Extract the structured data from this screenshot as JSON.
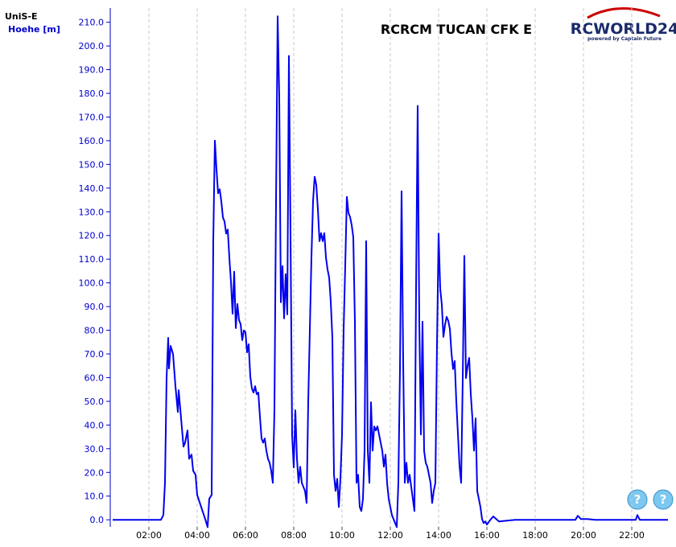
{
  "chart_data": {
    "type": "line",
    "title": "RCRCM TUCAN CFK E",
    "device": "UniS-E",
    "y_label": "Hoehe [m]",
    "logo": {
      "name": "RCWORLD24",
      "tagline": "powered by Captain Future"
    },
    "xlim": [
      24,
      1430
    ],
    "ylim": [
      -3,
      216
    ],
    "xticks": [
      {
        "value": 120,
        "label": "02:00"
      },
      {
        "value": 240,
        "label": "04:00"
      },
      {
        "value": 360,
        "label": "06:00"
      },
      {
        "value": 480,
        "label": "08:00"
      },
      {
        "value": 600,
        "label": "10:00"
      },
      {
        "value": 720,
        "label": "12:00"
      },
      {
        "value": 840,
        "label": "14:00"
      },
      {
        "value": 960,
        "label": "16:00"
      },
      {
        "value": 1080,
        "label": "18:00"
      },
      {
        "value": 1200,
        "label": "20:00"
      },
      {
        "value": 1320,
        "label": "22:00"
      }
    ],
    "yticks": [
      {
        "value": 0,
        "label": "0.0"
      },
      {
        "value": 10,
        "label": "10.0"
      },
      {
        "value": 20,
        "label": "20.0"
      },
      {
        "value": 30,
        "label": "30.0"
      },
      {
        "value": 40,
        "label": "40.0"
      },
      {
        "value": 50,
        "label": "50.0"
      },
      {
        "value": 60,
        "label": "60.0"
      },
      {
        "value": 70,
        "label": "70.0"
      },
      {
        "value": 80,
        "label": "80.0"
      },
      {
        "value": 90,
        "label": "90.0"
      },
      {
        "value": 100,
        "label": "100.0"
      },
      {
        "value": 110,
        "label": "110.0"
      },
      {
        "value": 120,
        "label": "120.0"
      },
      {
        "value": 130,
        "label": "130.0"
      },
      {
        "value": 140,
        "label": "140.0"
      },
      {
        "value": 150,
        "label": "150.0"
      },
      {
        "value": 160,
        "label": "160.0"
      },
      {
        "value": 170,
        "label": "170.0"
      },
      {
        "value": 180,
        "label": "180.0"
      },
      {
        "value": 190,
        "label": "190.0"
      },
      {
        "value": 200,
        "label": "200.0"
      },
      {
        "value": 210,
        "label": "210.0"
      }
    ],
    "x_grid": true,
    "color": "#0000ee",
    "x": [
      30,
      150,
      156,
      160,
      164,
      168,
      170,
      174,
      180,
      186,
      192,
      194,
      200,
      206,
      210,
      216,
      220,
      226,
      230,
      236,
      240,
      250,
      260,
      266,
      270,
      276,
      280,
      284,
      288,
      292,
      296,
      300,
      304,
      308,
      312,
      316,
      320,
      324,
      328,
      332,
      336,
      340,
      344,
      348,
      352,
      356,
      360,
      364,
      368,
      372,
      376,
      380,
      384,
      388,
      392,
      396,
      400,
      404,
      408,
      412,
      416,
      420,
      424,
      428,
      432,
      436,
      440,
      444,
      448,
      452,
      456,
      460,
      464,
      468,
      472,
      476,
      480,
      484,
      488,
      492,
      496,
      500,
      504,
      508,
      512,
      516,
      520,
      524,
      528,
      532,
      536,
      540,
      544,
      548,
      552,
      556,
      560,
      564,
      568,
      572,
      576,
      580,
      584,
      588,
      592,
      596,
      600,
      604,
      608,
      612,
      616,
      620,
      624,
      628,
      632,
      636,
      640,
      644,
      648,
      652,
      656,
      660,
      664,
      668,
      672,
      676,
      680,
      684,
      688,
      692,
      696,
      700,
      704,
      708,
      712,
      716,
      720,
      724,
      728,
      732,
      736,
      740,
      744,
      748,
      752,
      756,
      760,
      764,
      768,
      772,
      776,
      780,
      784,
      788,
      792,
      796,
      800,
      804,
      808,
      812,
      816,
      820,
      824,
      828,
      832,
      836,
      840,
      844,
      848,
      852,
      856,
      860,
      864,
      868,
      872,
      876,
      880,
      884,
      888,
      892,
      896,
      900,
      904,
      908,
      912,
      916,
      920,
      924,
      928,
      932,
      936,
      940,
      944,
      948,
      952,
      956,
      960,
      970,
      976,
      990,
      1030,
      1180,
      1186,
      1194,
      1210,
      1230,
      1330,
      1334,
      1340,
      1410
    ],
    "values": [
      0,
      0,
      2,
      15.6,
      59.8,
      76.8,
      63.9,
      73.4,
      70,
      56.4,
      45.5,
      54.7,
      42.8,
      30.9,
      32.6,
      37.7,
      25.8,
      27.5,
      20.7,
      19,
      10.5,
      5.4,
      0.3,
      -3.1,
      8.8,
      10.5,
      117.5,
      160,
      148,
      137.8,
      139.5,
      134.4,
      127.6,
      125.9,
      120.8,
      122.5,
      110.6,
      100.4,
      87,
      104.7,
      80.9,
      91.1,
      84.3,
      82.6,
      75.8,
      79.9,
      79.2,
      70.7,
      74.1,
      60.5,
      55.4,
      53.7,
      56.4,
      53,
      53.7,
      43.5,
      34.3,
      32.6,
      34.3,
      29.2,
      25.8,
      24.1,
      20.7,
      15.6,
      46.2,
      134.4,
      212.5,
      178.5,
      91.8,
      107.1,
      85,
      103.7,
      86.7,
      195.8,
      120.8,
      35.7,
      22.1,
      46.2,
      25.8,
      15.6,
      22.4,
      15.6,
      13.9,
      12.2,
      7.1,
      49.6,
      80.2,
      110.8,
      134.6,
      144.8,
      141.4,
      131.2,
      117.6,
      121,
      117.6,
      121,
      110.8,
      105.7,
      102.3,
      92.1,
      76.8,
      19,
      12.2,
      17.3,
      5.4,
      17.3,
      36,
      80.2,
      107.4,
      136.3,
      129.5,
      127.8,
      124.4,
      119.3,
      83.6,
      15.6,
      19,
      5.4,
      3.7,
      8.8,
      29.2,
      117.6,
      29.2,
      15.6,
      49.6,
      29.2,
      39.4,
      37.7,
      39.4,
      36,
      32.6,
      29.2,
      22.4,
      27.5,
      15.6,
      8.8,
      5.4,
      2,
      0.3,
      -1.4,
      -3.1,
      15.6,
      63.2,
      138.7,
      66.6,
      15.6,
      24.1,
      15.6,
      19,
      13.9,
      8.8,
      3.7,
      97.2,
      174.7,
      83.6,
      36,
      83.6,
      29.2,
      24.1,
      22.4,
      19,
      15.6,
      7.1,
      12.2,
      15.6,
      73.8,
      120.8,
      97.6,
      90.8,
      77.2,
      82.3,
      85.7,
      84,
      80.6,
      70.4,
      63.6,
      67,
      50,
      36.4,
      22.8,
      15.6,
      59.8,
      111.4,
      59.8,
      64.9,
      68.3,
      53,
      42.8,
      29.2,
      42.8,
      12.2,
      8.8,
      5.4,
      0.3,
      -1.4,
      -0.7,
      -2,
      0.3,
      1.4,
      -0.7,
      0,
      0,
      1.7,
      0.3,
      0.3,
      0,
      0,
      2,
      0,
      0
    ]
  }
}
